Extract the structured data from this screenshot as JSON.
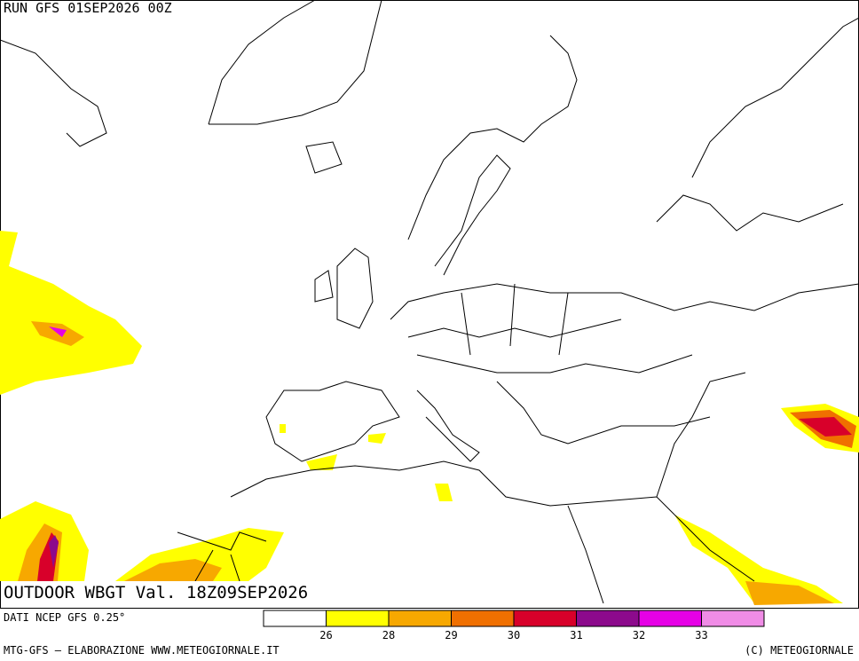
{
  "header": {
    "run": "RUN GFS 01SEP2026 00Z"
  },
  "map": {
    "title": "OUTDOOR WBGT Val. 18Z09SEP2026"
  },
  "source": "DATI NCEP GFS 0.25°",
  "legend": {
    "colors": [
      "#ffffff",
      "#ffff00",
      "#f7a800",
      "#f07000",
      "#d8002a",
      "#8c0a8c",
      "#e600e6",
      "#f08ce6"
    ],
    "ticks": [
      26,
      28,
      29,
      30,
      31,
      32,
      33
    ]
  },
  "footer": {
    "left": "MTG-GFS — ELABORAZIONE WWW.METEOGIORNALE.IT",
    "right": "(C) METEOGIORNALE"
  }
}
